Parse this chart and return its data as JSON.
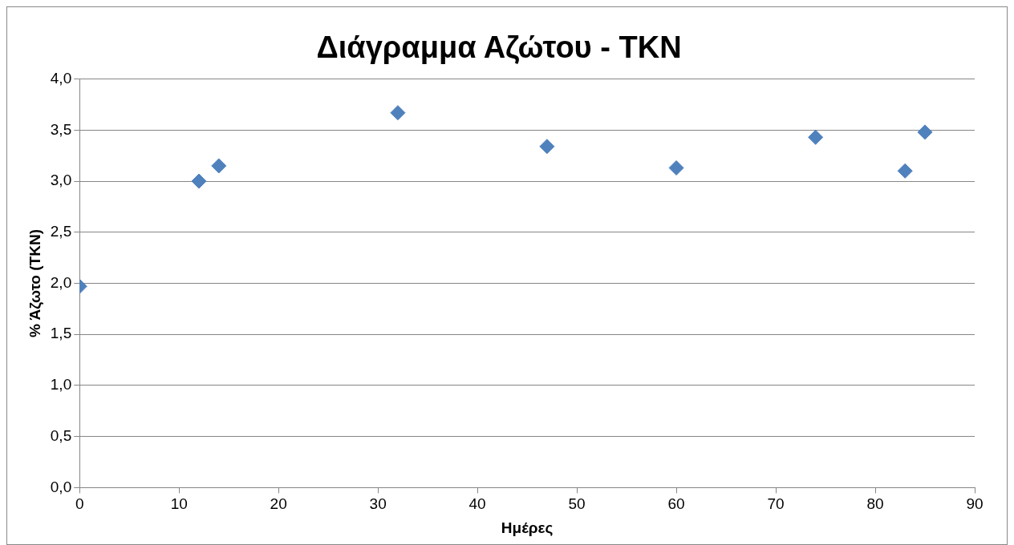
{
  "chart_data": {
    "type": "scatter",
    "title": "Διάγραμμα Αζώτου - TKN",
    "xlabel": "Ημέρες",
    "ylabel": "% Άζωτο (TKN)",
    "x": [
      0,
      12,
      14,
      32,
      47,
      60,
      74,
      83,
      85
    ],
    "values": [
      1.97,
      3.0,
      3.15,
      3.67,
      3.34,
      3.13,
      3.43,
      3.1,
      3.48
    ],
    "color": "#4f81bd",
    "marker": "diamond",
    "grid": "y",
    "legend": false,
    "xlim": [
      0,
      90
    ],
    "xticks": [
      0,
      10,
      20,
      30,
      40,
      50,
      60,
      70,
      80,
      90
    ],
    "ylim": [
      0,
      4
    ],
    "yticks": [
      {
        "value": 0,
        "label": "0,0"
      },
      {
        "value": 0.5,
        "label": "0,5"
      },
      {
        "value": 1,
        "label": "1,0"
      },
      {
        "value": 1.5,
        "label": "1,5"
      },
      {
        "value": 2,
        "label": "2,0"
      },
      {
        "value": 2.5,
        "label": "2,5"
      },
      {
        "value": 3,
        "label": "3,0"
      },
      {
        "value": 3.5,
        "label": "3,5"
      },
      {
        "value": 4,
        "label": "4,0"
      }
    ]
  }
}
